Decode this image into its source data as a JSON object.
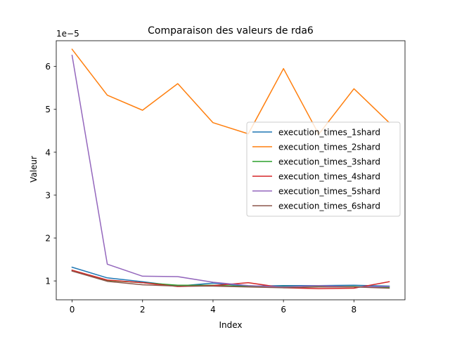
{
  "chart_data": {
    "type": "line",
    "title": "Comparaison des valeurs de rda6",
    "xlabel": "Index",
    "ylabel": "Valeur",
    "y_offset_label": "1e−5",
    "x": [
      0,
      1,
      2,
      3,
      4,
      5,
      6,
      7,
      8,
      9
    ],
    "xlim": [
      -0.45,
      9.45
    ],
    "ylim": [
      0.56,
      6.6
    ],
    "xticks": [
      0,
      2,
      4,
      6,
      8
    ],
    "xtick_labels": [
      "0",
      "2",
      "4",
      "6",
      "8"
    ],
    "yticks": [
      1,
      2,
      3,
      4,
      5,
      6
    ],
    "ytick_labels": [
      "1",
      "2",
      "3",
      "4",
      "5",
      "6"
    ],
    "grid": false,
    "legend_position": "center-right",
    "series": [
      {
        "name": "execution_times_1shard",
        "color": "#1f77b4",
        "values": [
          1.32,
          1.07,
          0.98,
          0.88,
          0.95,
          0.88,
          0.89,
          0.89,
          0.9,
          0.88
        ]
      },
      {
        "name": "execution_times_2shard",
        "color": "#ff7f0e",
        "values": [
          6.4,
          5.33,
          4.98,
          5.6,
          4.69,
          4.43,
          5.95,
          4.42,
          5.48,
          4.69
        ]
      },
      {
        "name": "execution_times_3shard",
        "color": "#2ca02c",
        "values": [
          1.25,
          1.01,
          0.96,
          0.9,
          0.9,
          0.87,
          0.87,
          0.88,
          0.87,
          0.85
        ]
      },
      {
        "name": "execution_times_4shard",
        "color": "#d62728",
        "values": [
          1.25,
          1.02,
          0.96,
          0.87,
          0.89,
          0.96,
          0.84,
          0.82,
          0.83,
          0.98
        ]
      },
      {
        "name": "execution_times_5shard",
        "color": "#9467bd",
        "values": [
          6.26,
          1.39,
          1.11,
          1.1,
          0.97,
          0.89,
          0.86,
          0.89,
          0.86,
          0.87
        ]
      },
      {
        "name": "execution_times_6shard",
        "color": "#8c564b",
        "values": [
          1.23,
          0.99,
          0.91,
          0.88,
          0.88,
          0.86,
          0.84,
          0.86,
          0.86,
          0.83
        ]
      }
    ]
  }
}
